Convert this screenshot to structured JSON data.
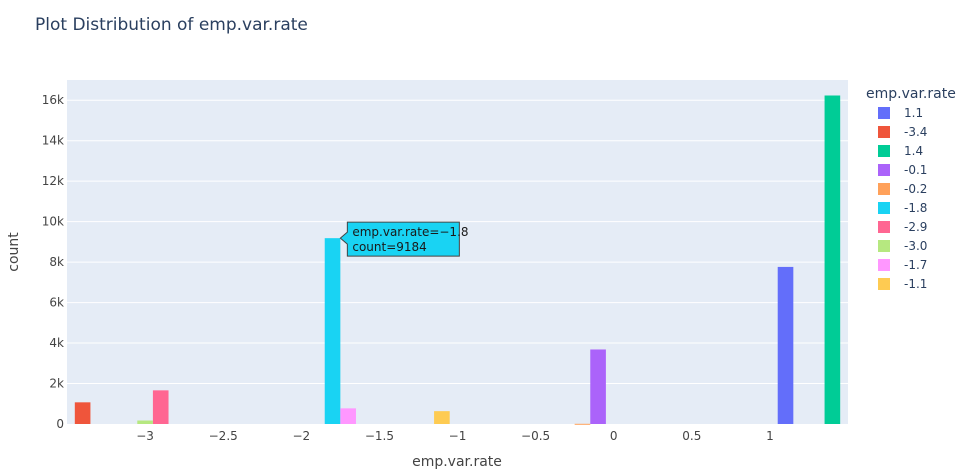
{
  "chart_data": {
    "type": "bar",
    "title": "Plot Distribution of emp.var.rate",
    "xlabel": "emp.var.rate",
    "ylabel": "count",
    "xlim": [
      -3.5,
      1.5
    ],
    "ylim": [
      0,
      17000
    ],
    "x_ticks": [
      -3,
      -2.5,
      -2,
      -1.5,
      -1,
      -0.5,
      0,
      0.5,
      1
    ],
    "x_tick_labels": [
      "−3",
      "−2.5",
      "−2",
      "−1.5",
      "−1",
      "−0.5",
      "0",
      "0.5",
      "1"
    ],
    "y_ticks": [
      0,
      2000,
      4000,
      6000,
      8000,
      10000,
      12000,
      14000,
      16000
    ],
    "y_tick_labels": [
      "0",
      "2k",
      "4k",
      "6k",
      "8k",
      "10k",
      "12k",
      "14k",
      "16k"
    ],
    "grid": true,
    "legend_title": "emp.var.rate",
    "legend_position": "right",
    "series": [
      {
        "name": "1.1",
        "x": 1.1,
        "value": 7763,
        "color": "#636efa"
      },
      {
        "name": "-3.4",
        "x": -3.4,
        "value": 1071,
        "color": "#ef553b"
      },
      {
        "name": "1.4",
        "x": 1.4,
        "value": 16234,
        "color": "#00cc96"
      },
      {
        "name": "-0.1",
        "x": -0.1,
        "value": 3683,
        "color": "#ab63fa"
      },
      {
        "name": "-0.2",
        "x": -0.2,
        "value": 10,
        "color": "#ffa15a"
      },
      {
        "name": "-1.8",
        "x": -1.8,
        "value": 9184,
        "color": "#19d3f3"
      },
      {
        "name": "-2.9",
        "x": -2.9,
        "value": 1663,
        "color": "#ff6692"
      },
      {
        "name": "-3.0",
        "x": -3.0,
        "value": 172,
        "color": "#b6e880"
      },
      {
        "name": "-1.7",
        "x": -1.7,
        "value": 773,
        "color": "#ff97ff"
      },
      {
        "name": "-1.1",
        "x": -1.1,
        "value": 635,
        "color": "#fecb52"
      }
    ],
    "tooltip": {
      "series": "-1.8",
      "line1": "emp.var.rate=−1.8",
      "line2": "count=9184"
    }
  }
}
